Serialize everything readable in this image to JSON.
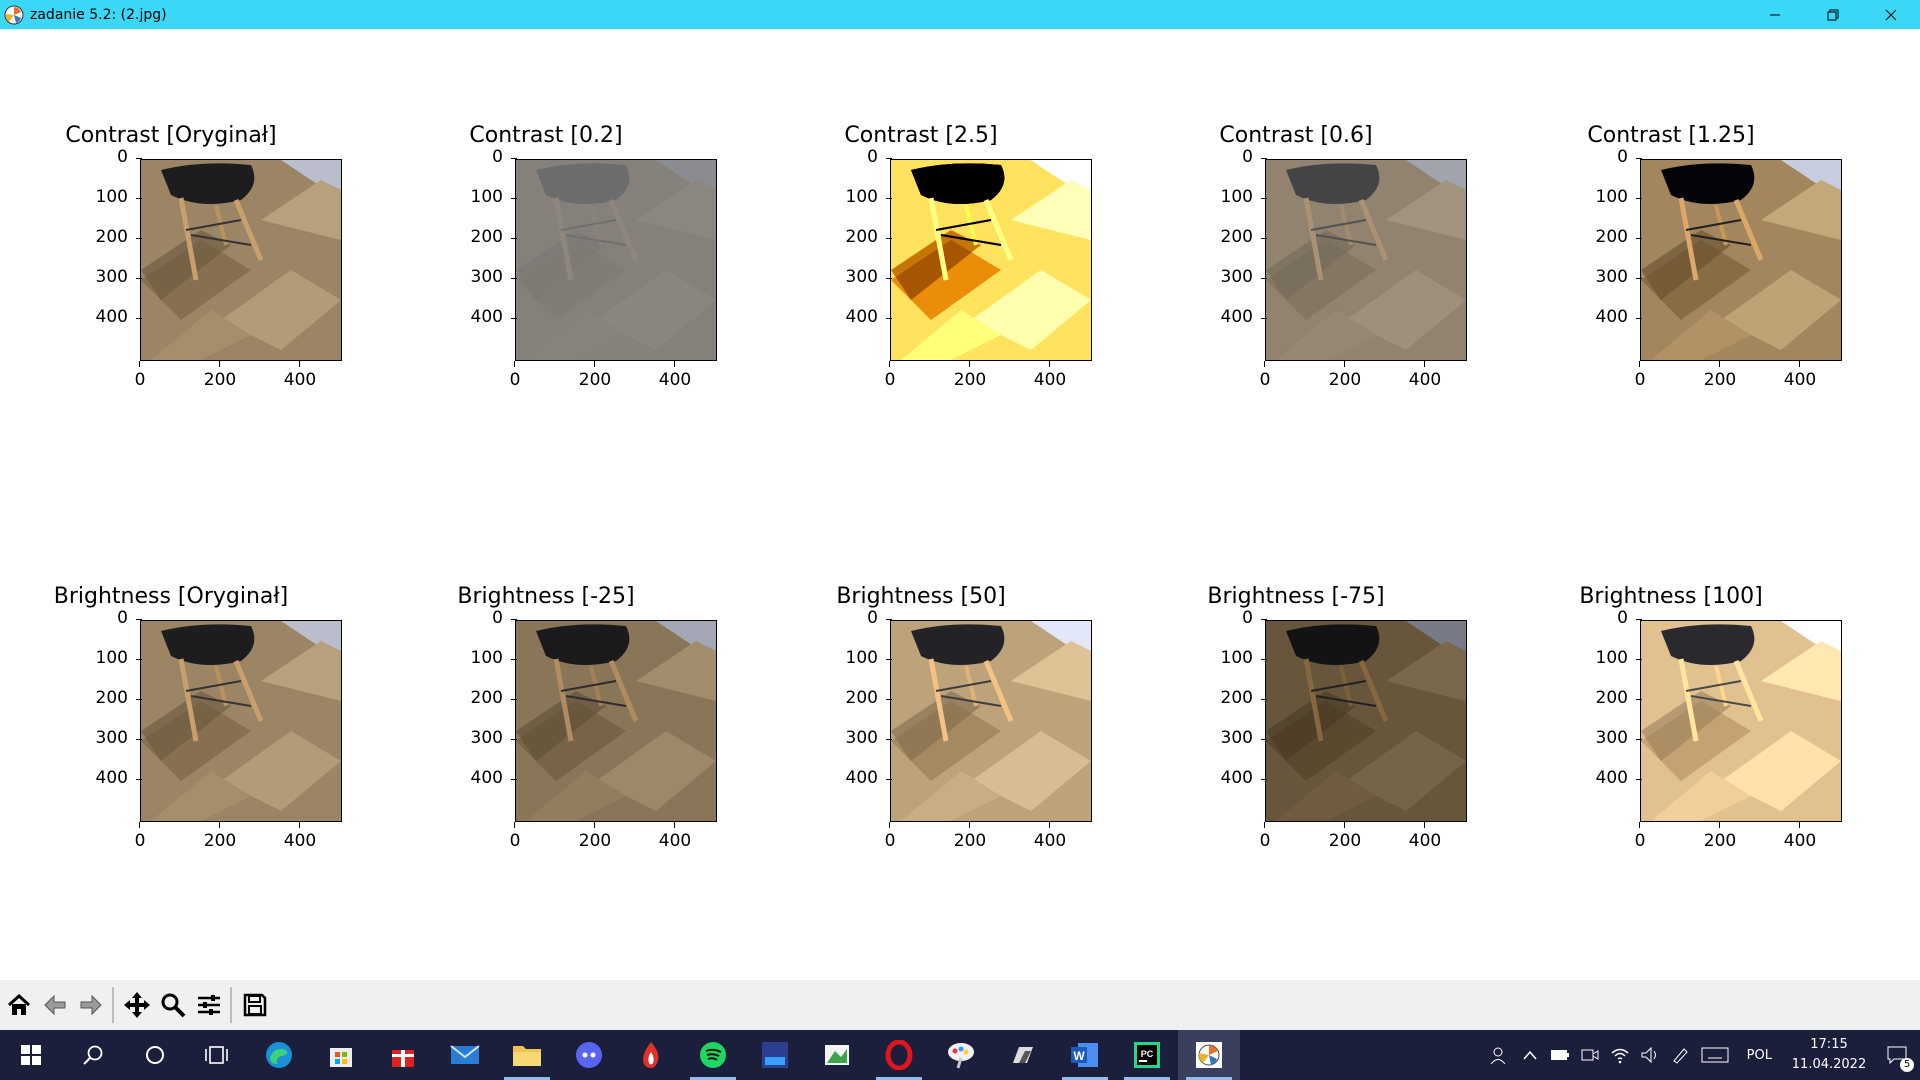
{
  "window": {
    "title": "zadanie 5.2: (2.jpg)",
    "icon": "matplotlib-icon",
    "controls": [
      "minimize-icon",
      "restore-icon",
      "close-icon"
    ]
  },
  "figure": {
    "image_title_contrast": [
      "Contrast [Oryginał]",
      "Contrast [0.2]",
      "Contrast [2.5]",
      "Contrast [0.6]",
      "Contrast [1.25]"
    ],
    "image_title_brightness": [
      "Brightness [Oryginał]",
      "Brightness [-25]",
      "Brightness [50]",
      "Brightness [-75]",
      "Brightness [100]"
    ],
    "y_ticks": [
      "0",
      "100",
      "200",
      "300",
      "400"
    ],
    "x_ticks": [
      "0",
      "200",
      "400"
    ],
    "image_description": "photo of a black chair with wooden legs on a herringbone wooden floor"
  },
  "toolbar": {
    "buttons": [
      "home-icon",
      "back-icon",
      "forward-icon",
      "pan-icon",
      "zoom-icon",
      "configure-subplots-icon",
      "save-icon"
    ]
  },
  "taskbar": {
    "apps": [
      "start-icon",
      "search-icon",
      "cortana-icon",
      "task-view-icon",
      "edge-icon",
      "store-icon",
      "gift-icon",
      "mail-icon",
      "file-explorer-icon",
      "discord-icon",
      "app-flame-icon",
      "spotify-icon",
      "devcx-icon",
      "app-green-icon",
      "opera-icon",
      "app-paint-icon",
      "app-dark-icon",
      "word-icon",
      "pycharm-icon",
      "matplotlib-window-icon"
    ],
    "tray": {
      "language": "POL",
      "time": "17:15",
      "date": "11.04.2022",
      "notifications": "5"
    }
  }
}
